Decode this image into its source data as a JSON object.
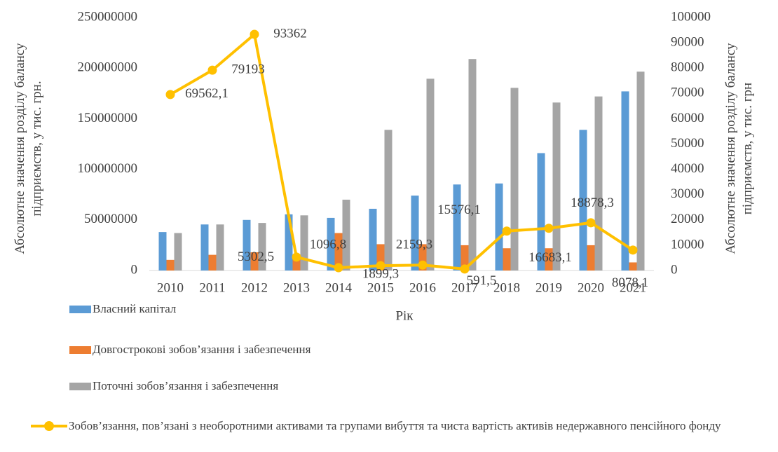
{
  "chart_data": {
    "type": "bar",
    "categories": [
      "2010",
      "2011",
      "2012",
      "2013",
      "2014",
      "2015",
      "2016",
      "2017",
      "2018",
      "2019",
      "2020",
      "2021"
    ],
    "xlabel": "Рік",
    "ylabel": "Абсолютне значення розділу балансу підприємств, у тис. грн.",
    "y2label": "Абсолютне значення розділу балансу підприємств, у тис. грн",
    "ylim": [
      0,
      250000000
    ],
    "yticks": [
      0,
      50000000,
      100000000,
      150000000,
      200000000,
      250000000
    ],
    "y2lim": [
      0,
      100000
    ],
    "y2ticks": [
      0,
      10000,
      20000,
      30000,
      40000,
      50000,
      60000,
      70000,
      80000,
      90000,
      100000
    ],
    "grid": false,
    "legend": "bottom",
    "series": [
      {
        "name": "Власний капітал",
        "color": "#5b9bd5",
        "type": "bar",
        "values": [
          38000000,
          45500000,
          50000000,
          55500000,
          52000000,
          61000000,
          74000000,
          85000000,
          86000000,
          116000000,
          139000000,
          177000000
        ]
      },
      {
        "name": "Довгострокові зобов’язання і забезпечення",
        "color": "#ed7d31",
        "type": "bar",
        "values": [
          10500000,
          15500000,
          18000000,
          14000000,
          37000000,
          26000000,
          26000000,
          25000000,
          22000000,
          22000000,
          25000000,
          8000000
        ]
      },
      {
        "name": "Поточні зобов’язання і забезпечення",
        "color": "#a5a5a5",
        "type": "bar",
        "values": [
          37000000,
          45500000,
          47000000,
          54500000,
          70000000,
          139000000,
          189500000,
          209000000,
          180500000,
          166000000,
          172000000,
          196500000
        ]
      },
      {
        "name": "Зобов’язання, пов’язані з необоротними активами та групами вибуття та чиста вартість активів недержавного пенсійного фонду",
        "color": "#ffc000",
        "type": "line",
        "axis": "y2",
        "values": [
          69562.1,
          79193,
          93362,
          5302.5,
          1096.8,
          1899.3,
          2159.3,
          591.5,
          15576.1,
          16683.1,
          18878.3,
          8078.1
        ],
        "value_labels": [
          "69562,1",
          "79193",
          "93362",
          "5302,5",
          "1096,8",
          "1899,3",
          "2159,3",
          "591,5",
          "15576,1",
          "16683,1",
          "18878,3",
          "8078,1"
        ]
      }
    ]
  }
}
